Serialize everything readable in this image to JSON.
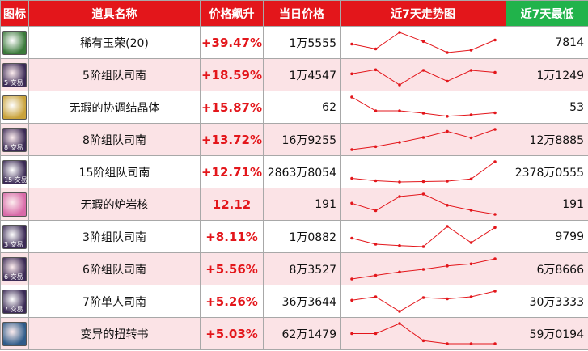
{
  "headers": {
    "icon": "图标",
    "name": "道具名称",
    "change": "价格飙升",
    "price": "当日价格",
    "trend": "近7天走势图",
    "low": "近7天最低"
  },
  "colors": {
    "header_red": "#e3161b",
    "header_green": "#21b34b",
    "row_alt": "#fbe3e6",
    "trend_line": "#e3161b"
  },
  "rows": [
    {
      "icon": "jade-orb-icon",
      "icon_text": "",
      "icon_color": "#3a7a3a",
      "name": "稀有玉荣(20)",
      "change": "+39.47%",
      "price": "1万5555",
      "low": "7814",
      "trend": [
        0.42,
        0.18,
        1.0,
        0.55,
        0.0,
        0.12,
        0.62
      ]
    },
    {
      "icon": "compass-icon",
      "icon_text": "5 交易",
      "icon_color": "#3b2a55",
      "name": "5阶组队司南",
      "change": "+18.59%",
      "price": "1万4547",
      "low": "1万1249",
      "trend": [
        0.55,
        0.75,
        0.0,
        0.72,
        0.18,
        0.72,
        0.62
      ]
    },
    {
      "icon": "crystal-icon",
      "icon_text": "",
      "icon_color": "#c9a23a",
      "name": "无瑕的协调结晶体",
      "change": "+15.87%",
      "price": "62",
      "low": "53",
      "trend": [
        1.0,
        0.32,
        0.32,
        0.2,
        0.05,
        0.12,
        0.22
      ]
    },
    {
      "icon": "compass-icon",
      "icon_text": "8 交易",
      "icon_color": "#3b2a55",
      "name": "8阶组队司南",
      "change": "+13.72%",
      "price": "16万9255",
      "low": "12万8885",
      "trend": [
        0.0,
        0.15,
        0.36,
        0.6,
        0.9,
        0.58,
        1.0
      ]
    },
    {
      "icon": "compass-icon",
      "icon_text": "15 交易",
      "icon_color": "#3b2a55",
      "name": "15阶组队司南",
      "change": "+12.71%",
      "price": "2863万8054",
      "low": "2378万0555",
      "trend": [
        0.18,
        0.06,
        0.0,
        0.02,
        0.04,
        0.15,
        1.0
      ]
    },
    {
      "icon": "flower-core-icon",
      "icon_text": "",
      "icon_color": "#d86aa8",
      "name": "无瑕的炉岩核",
      "change": "12.12",
      "price": "191",
      "low": "191",
      "trend": [
        0.55,
        0.18,
        0.88,
        1.0,
        0.45,
        0.2,
        0.0
      ]
    },
    {
      "icon": "compass-icon",
      "icon_text": "3 交易",
      "icon_color": "#3b2a55",
      "name": "3阶组队司南",
      "change": "+8.11%",
      "price": "1万0882",
      "low": "9799",
      "trend": [
        0.42,
        0.12,
        0.05,
        0.0,
        1.0,
        0.2,
        0.95
      ]
    },
    {
      "icon": "compass-icon",
      "icon_text": "6 交易",
      "icon_color": "#3b2a55",
      "name": "6阶组队司南",
      "change": "+5.56%",
      "price": "8万3527",
      "low": "6万8666",
      "trend": [
        0.0,
        0.18,
        0.35,
        0.48,
        0.65,
        0.75,
        1.0
      ]
    },
    {
      "icon": "compass-icon",
      "icon_text": "7 交易",
      "icon_color": "#3b2a55",
      "name": "7阶单人司南",
      "change": "+5.26%",
      "price": "36万3644",
      "low": "30万3333",
      "trend": [
        0.55,
        0.72,
        0.0,
        0.68,
        0.62,
        0.72,
        1.0
      ]
    },
    {
      "icon": "book-icon",
      "icon_text": "",
      "icon_color": "#2f5c8a",
      "name": "变异的扭转书",
      "change": "+5.03%",
      "price": "62万1479",
      "low": "59万0194",
      "trend": [
        0.5,
        0.5,
        1.0,
        0.15,
        0.0,
        0.0,
        0.0
      ]
    }
  ]
}
